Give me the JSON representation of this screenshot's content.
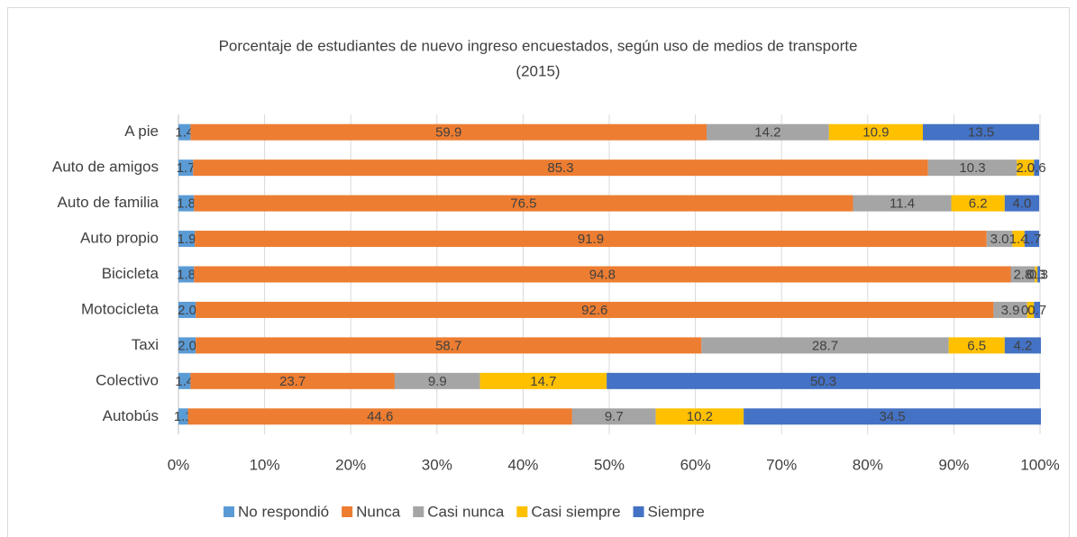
{
  "chart_data": {
    "type": "bar",
    "orientation": "horizontal",
    "stacked": true,
    "title": [
      "Porcentaje de estudiantes de nuevo ingreso encuestados, según uso de medios de transporte",
      "(2015)"
    ],
    "categories": [
      "A pie",
      "Auto de amigos",
      "Auto de familia",
      "Auto propio",
      "Bicicleta",
      "Motocicleta",
      "Taxi",
      "Colectivo",
      "Autobús"
    ],
    "series": [
      {
        "name": "No respondió",
        "color": "#5b9bd5",
        "values": [
          1.4,
          1.7,
          1.8,
          1.9,
          1.8,
          2.0,
          2.0,
          1.4,
          1.1
        ],
        "value_labels": [
          "1.4",
          "1.7",
          "1.8",
          "1.9",
          "1.8",
          "2.0",
          "2.0",
          "1.4",
          "1.1"
        ]
      },
      {
        "name": "Nunca",
        "color": "#ed7d31",
        "values": [
          59.9,
          85.3,
          76.5,
          91.9,
          94.8,
          92.6,
          58.7,
          23.7,
          44.6
        ],
        "value_labels": [
          "59.9",
          "85.3",
          "76.5",
          "91.9",
          "94.8",
          "92.6",
          "58.7",
          "23.7",
          "44.6"
        ]
      },
      {
        "name": "Casi nunca",
        "color": "#a5a5a5",
        "values": [
          14.2,
          10.3,
          11.4,
          3.0,
          2.8,
          3.9,
          28.7,
          9.9,
          9.7
        ],
        "value_labels": [
          "14.2",
          "10.3",
          "11.4",
          "3.0",
          "2.8",
          "3.9",
          "28.7",
          "9.9",
          "9.7"
        ]
      },
      {
        "name": "Casi siempre",
        "color": "#ffc000",
        "values": [
          10.9,
          2.0,
          6.2,
          1.4,
          0.3,
          0.8,
          6.5,
          14.7,
          10.2
        ],
        "value_labels": [
          "10.9",
          "2.0",
          "6.2",
          "1.4",
          "0.3",
          "0.8",
          "6.5",
          "14.7",
          "10.2"
        ]
      },
      {
        "name": "Siempre",
        "color": "#4472c4",
        "values": [
          13.5,
          0.6,
          4.0,
          1.7,
          0.3,
          0.7,
          4.2,
          50.3,
          34.5
        ],
        "value_labels": [
          "13.5",
          "0.6",
          "4.0",
          "1.7",
          "0.3",
          "0.7",
          "4.2",
          "50.3",
          "34.5"
        ]
      }
    ],
    "xlim": [
      0,
      100
    ],
    "xticks": [
      {
        "value": 0,
        "label": "0%"
      },
      {
        "value": 10,
        "label": "10%"
      },
      {
        "value": 20,
        "label": "20%"
      },
      {
        "value": 30,
        "label": "30%"
      },
      {
        "value": 40,
        "label": "40%"
      },
      {
        "value": 50,
        "label": "50%"
      },
      {
        "value": 60,
        "label": "60%"
      },
      {
        "value": 70,
        "label": "70%"
      },
      {
        "value": 80,
        "label": "80%"
      },
      {
        "value": 90,
        "label": "90%"
      },
      {
        "value": 100,
        "label": "100%"
      }
    ],
    "grid": true,
    "legend": "bottom"
  }
}
